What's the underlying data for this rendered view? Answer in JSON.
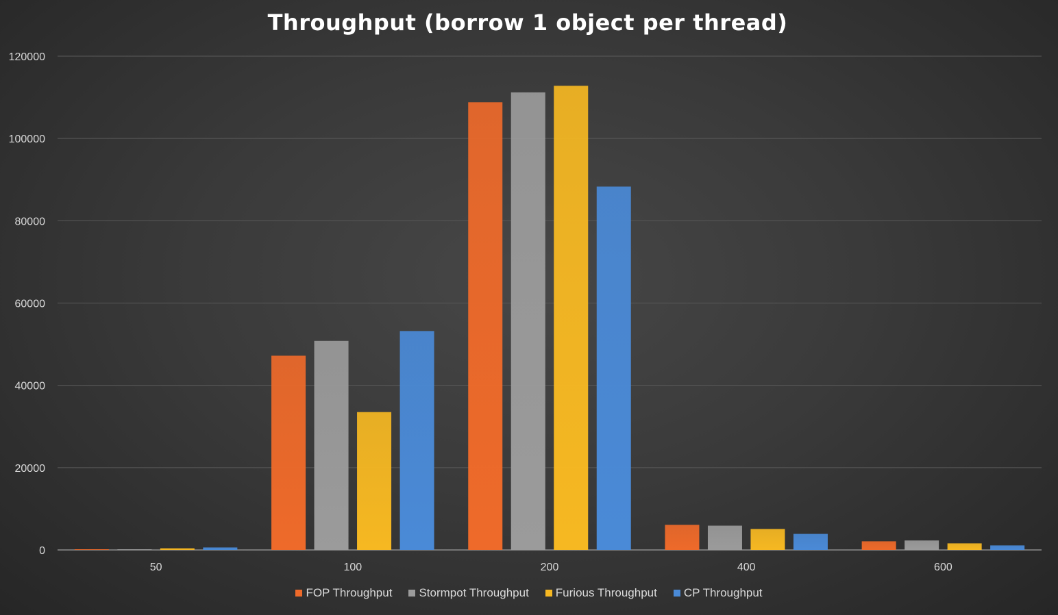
{
  "chart_data": {
    "type": "bar",
    "title": "Throughput (borrow 1 object per thread)",
    "xlabel": "",
    "ylabel": "",
    "categories": [
      "50",
      "100",
      "200",
      "400",
      "600"
    ],
    "ylim": [
      0,
      120000
    ],
    "yticks": [
      "0",
      "20000",
      "40000",
      "60000",
      "80000",
      "100000",
      "120000"
    ],
    "grid": true,
    "legend_position": "bottom",
    "series": [
      {
        "name": "FOP Throughput",
        "color": "#ee6a2a",
        "values": [
          150,
          47200,
          108800,
          6100,
          2100
        ]
      },
      {
        "name": "Stormpot Throughput",
        "color": "#9b9b9b",
        "values": [
          100,
          50800,
          111200,
          5900,
          2300
        ]
      },
      {
        "name": "Furious Throughput",
        "color": "#f6b822",
        "values": [
          400,
          33500,
          112800,
          5100,
          1600
        ]
      },
      {
        "name": "CP Throughput",
        "color": "#4a8ad7",
        "values": [
          600,
          53200,
          88300,
          3900,
          1100
        ]
      }
    ]
  }
}
